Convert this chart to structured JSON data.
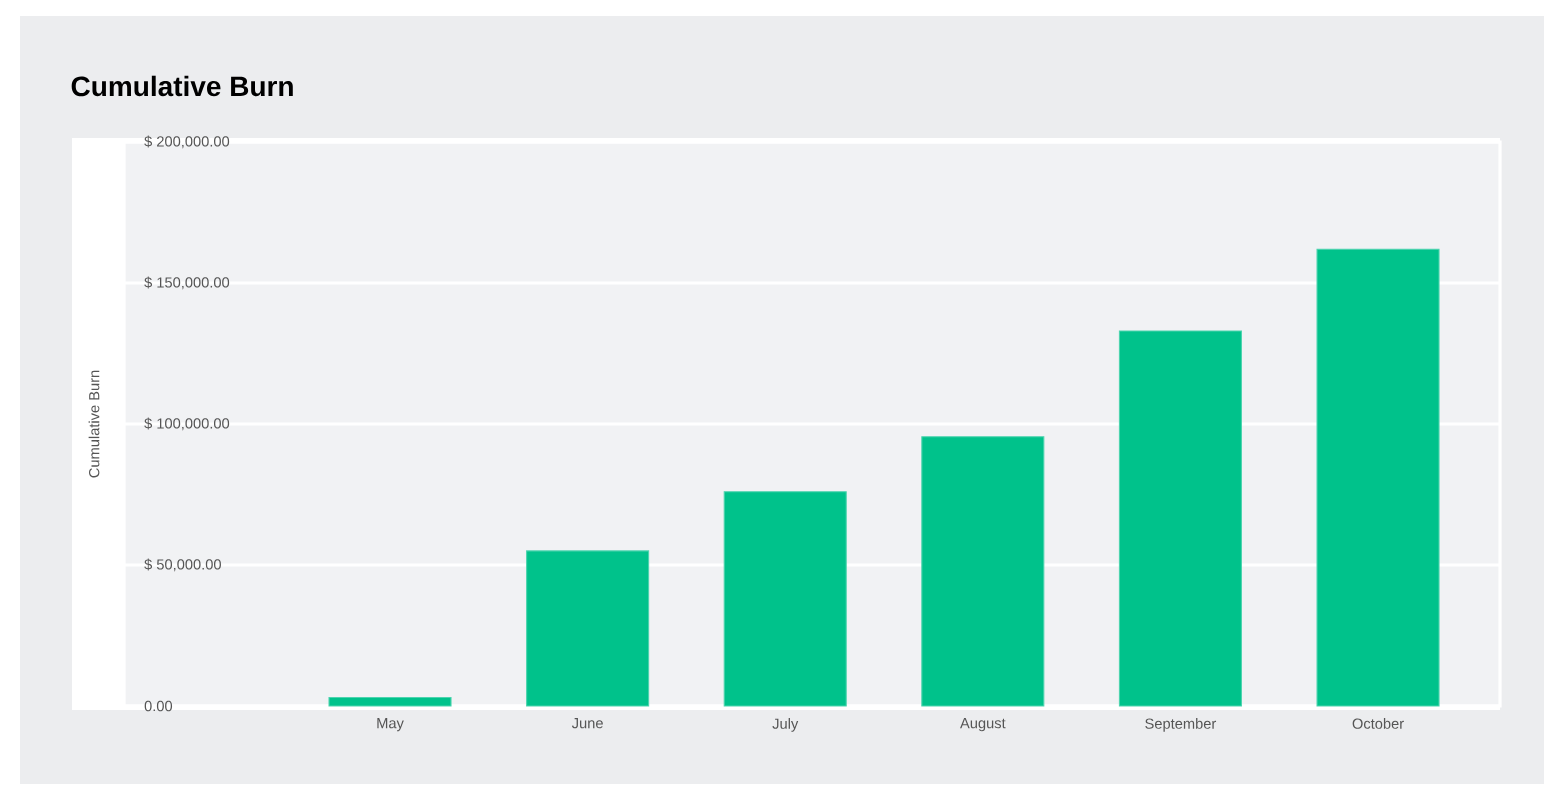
{
  "chart_data": {
    "type": "bar",
    "title": "Cumulative Burn",
    "ylabel": "Cumulative Burn",
    "categories": [
      "May",
      "June",
      "July",
      "August",
      "September",
      "October"
    ],
    "values": [
      3000,
      55000,
      76000,
      95500,
      133000,
      162000
    ],
    "color": "#00c28b",
    "ylim": [
      0,
      200000
    ],
    "yticks": [
      {
        "value": 0,
        "label": "0.00"
      },
      {
        "value": 50000,
        "label": "$ 50,000.00"
      },
      {
        "value": 100000,
        "label": "$ 100,000.00"
      },
      {
        "value": 150000,
        "label": "$ 150,000.00"
      },
      {
        "value": 200000,
        "label": "$ 200,000.00"
      }
    ],
    "grid": "y"
  }
}
